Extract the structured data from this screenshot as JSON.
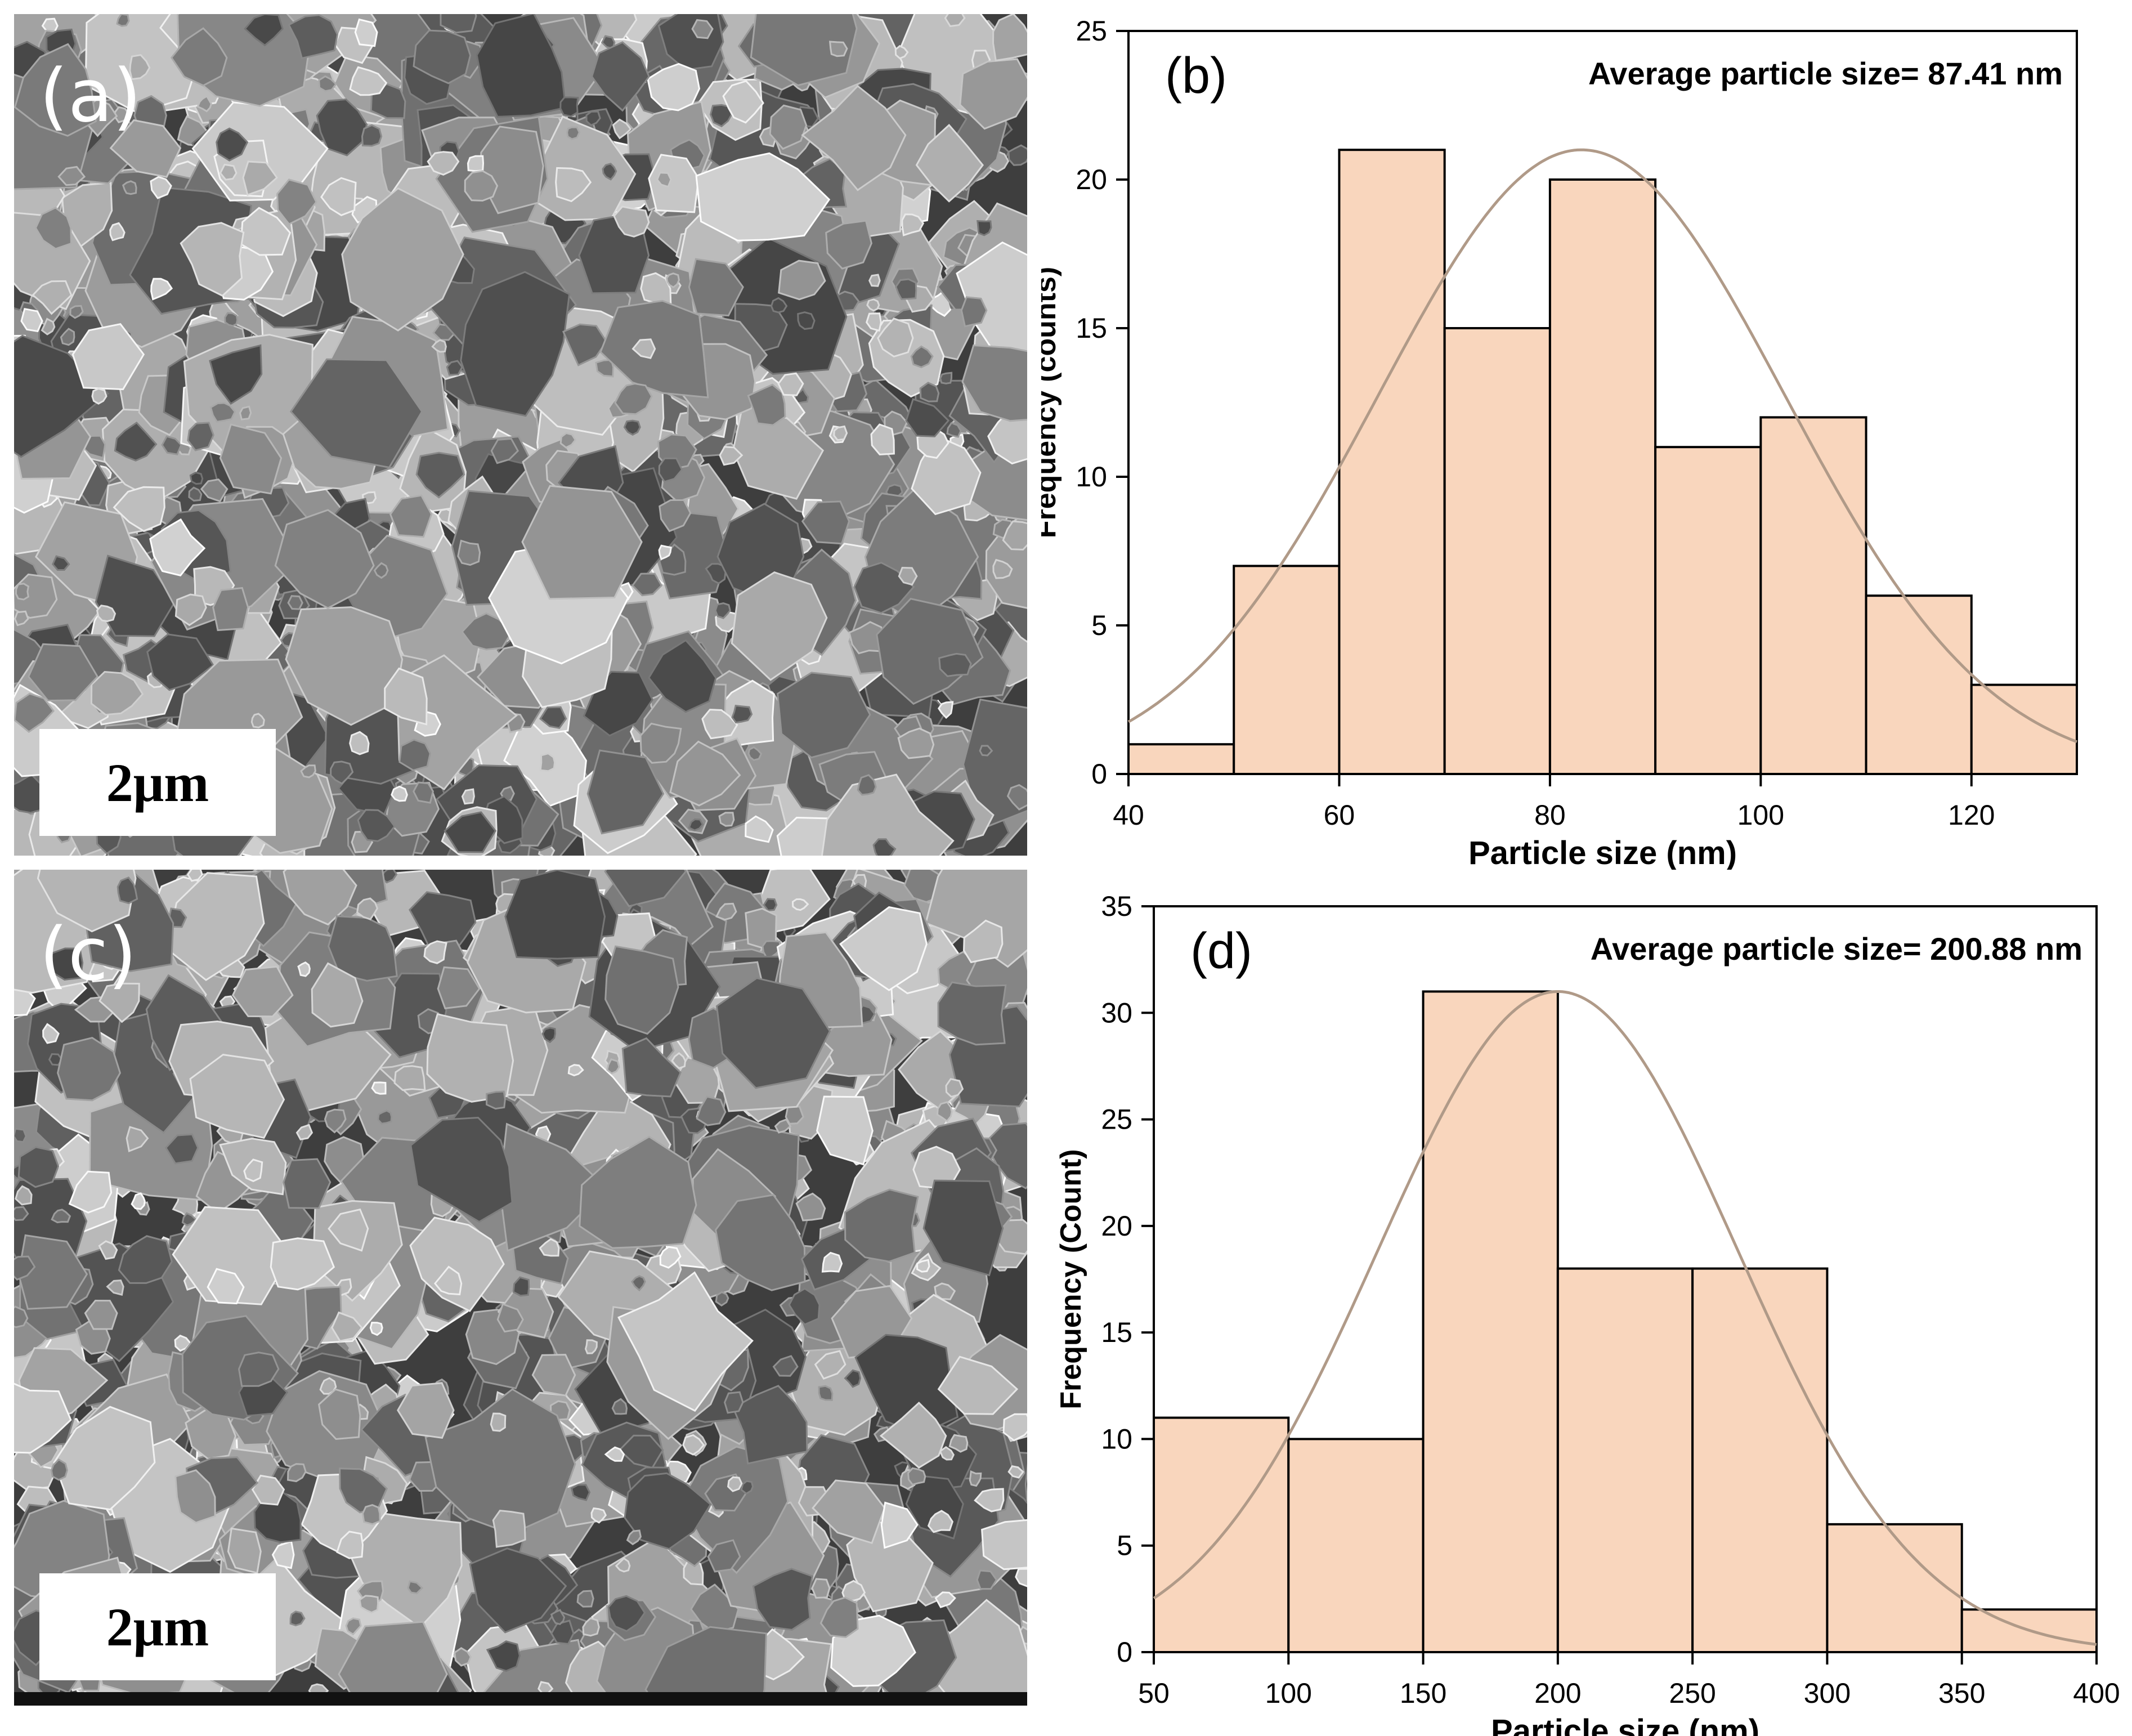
{
  "panels": {
    "a": {
      "label": "(a)",
      "scale_bar": "2μm"
    },
    "c": {
      "label": "(c)",
      "scale_bar": "2μm"
    }
  },
  "chart_data": [
    {
      "type": "bar",
      "panel_label": "(b)",
      "annotation": "Average particle size= 87.41 nm",
      "xlabel": "Particle size (nm)",
      "ylabel": "Frequency (counts)",
      "xlim": [
        40,
        130
      ],
      "ylim": [
        0,
        25
      ],
      "x_ticks": [
        40,
        60,
        80,
        100,
        120
      ],
      "y_ticks": [
        0,
        5,
        10,
        15,
        20,
        25
      ],
      "bin_edges": [
        40,
        50,
        60,
        70,
        80,
        90,
        100,
        110,
        120,
        130
      ],
      "values": [
        1,
        7,
        21,
        15,
        20,
        11,
        12,
        6,
        3
      ],
      "fit": {
        "type": "gaussian",
        "peak_x": 83,
        "peak_y": 21,
        "sigma": 19.3
      },
      "bar_color": "#f9d6bd",
      "fit_color": "#b09a88"
    },
    {
      "type": "bar",
      "panel_label": "(d)",
      "annotation": "Average particle size= 200.88 nm",
      "xlabel": "Particle size (nm)",
      "ylabel": "Frequency (Count)",
      "xlim": [
        50,
        400
      ],
      "ylim": [
        0,
        35
      ],
      "x_ticks": [
        50,
        100,
        150,
        200,
        250,
        300,
        350,
        400
      ],
      "y_ticks": [
        0,
        5,
        10,
        15,
        20,
        25,
        30,
        35
      ],
      "bin_edges": [
        50,
        100,
        150,
        200,
        250,
        300,
        350,
        400
      ],
      "values": [
        11,
        10,
        31,
        18,
        18,
        6,
        2
      ],
      "fit": {
        "type": "gaussian",
        "peak_x": 200,
        "peak_y": 31,
        "sigma": 67
      },
      "bar_color": "#f9d6bd",
      "fit_color": "#b09a88"
    }
  ]
}
